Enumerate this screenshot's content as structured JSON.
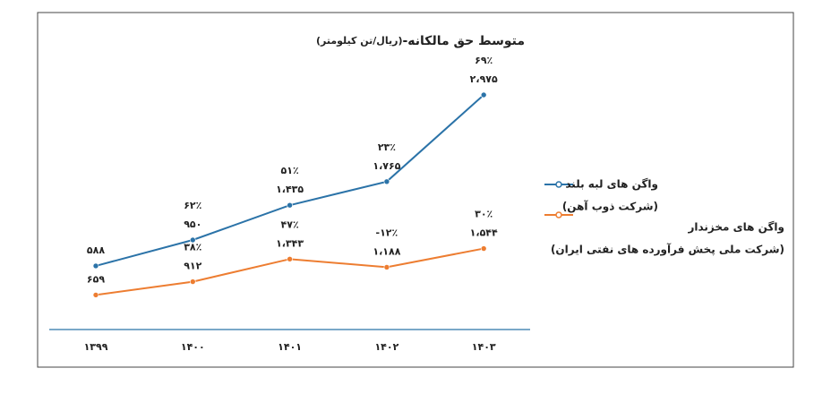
{
  "chart_data": {
    "type": "line",
    "title": "متوسط حق مالکانه-",
    "unit": "(ریال/تن کیلومتر)",
    "categories": [
      "۱۳۹۹",
      "۱۴۰۰",
      "۱۴۰۱",
      "۱۴۰۲",
      "۱۴۰۳"
    ],
    "ylim": [
      -300,
      3800
    ],
    "y2lim": [
      0,
      5600
    ],
    "series": [
      {
        "name": "واگن های لبه بلند",
        "company": "(شرکت ذوب آهن)",
        "color": "#2b73a8",
        "values": [
          588,
          950,
          1435,
          1765,
          2975
        ],
        "value_labels": [
          "۵۸۸",
          "۹۵۰",
          "۱،۴۳۵",
          "۱،۷۶۵",
          "۲،۹۷۵"
        ],
        "change_labels": [
          null,
          "۶۲٪",
          "۵۱٪",
          "۲۳٪",
          "۶۹٪"
        ]
      },
      {
        "name": "واگن های مخزندار",
        "company": "(شرکت ملی پخش فرآورده های نفتی ایران)",
        "color": "#ed7d31",
        "axis": "y2",
        "values": [
          659,
          912,
          1343,
          1188,
          1544
        ],
        "value_labels": [
          "۶۵۹",
          "۹۱۲",
          "۱،۳۴۳",
          "۱،۱۸۸",
          "۱،۵۴۴"
        ],
        "change_labels": [
          null,
          "۳۸٪",
          "۴۷٪",
          "-۱۲٪",
          "۳۰٪"
        ]
      }
    ]
  }
}
